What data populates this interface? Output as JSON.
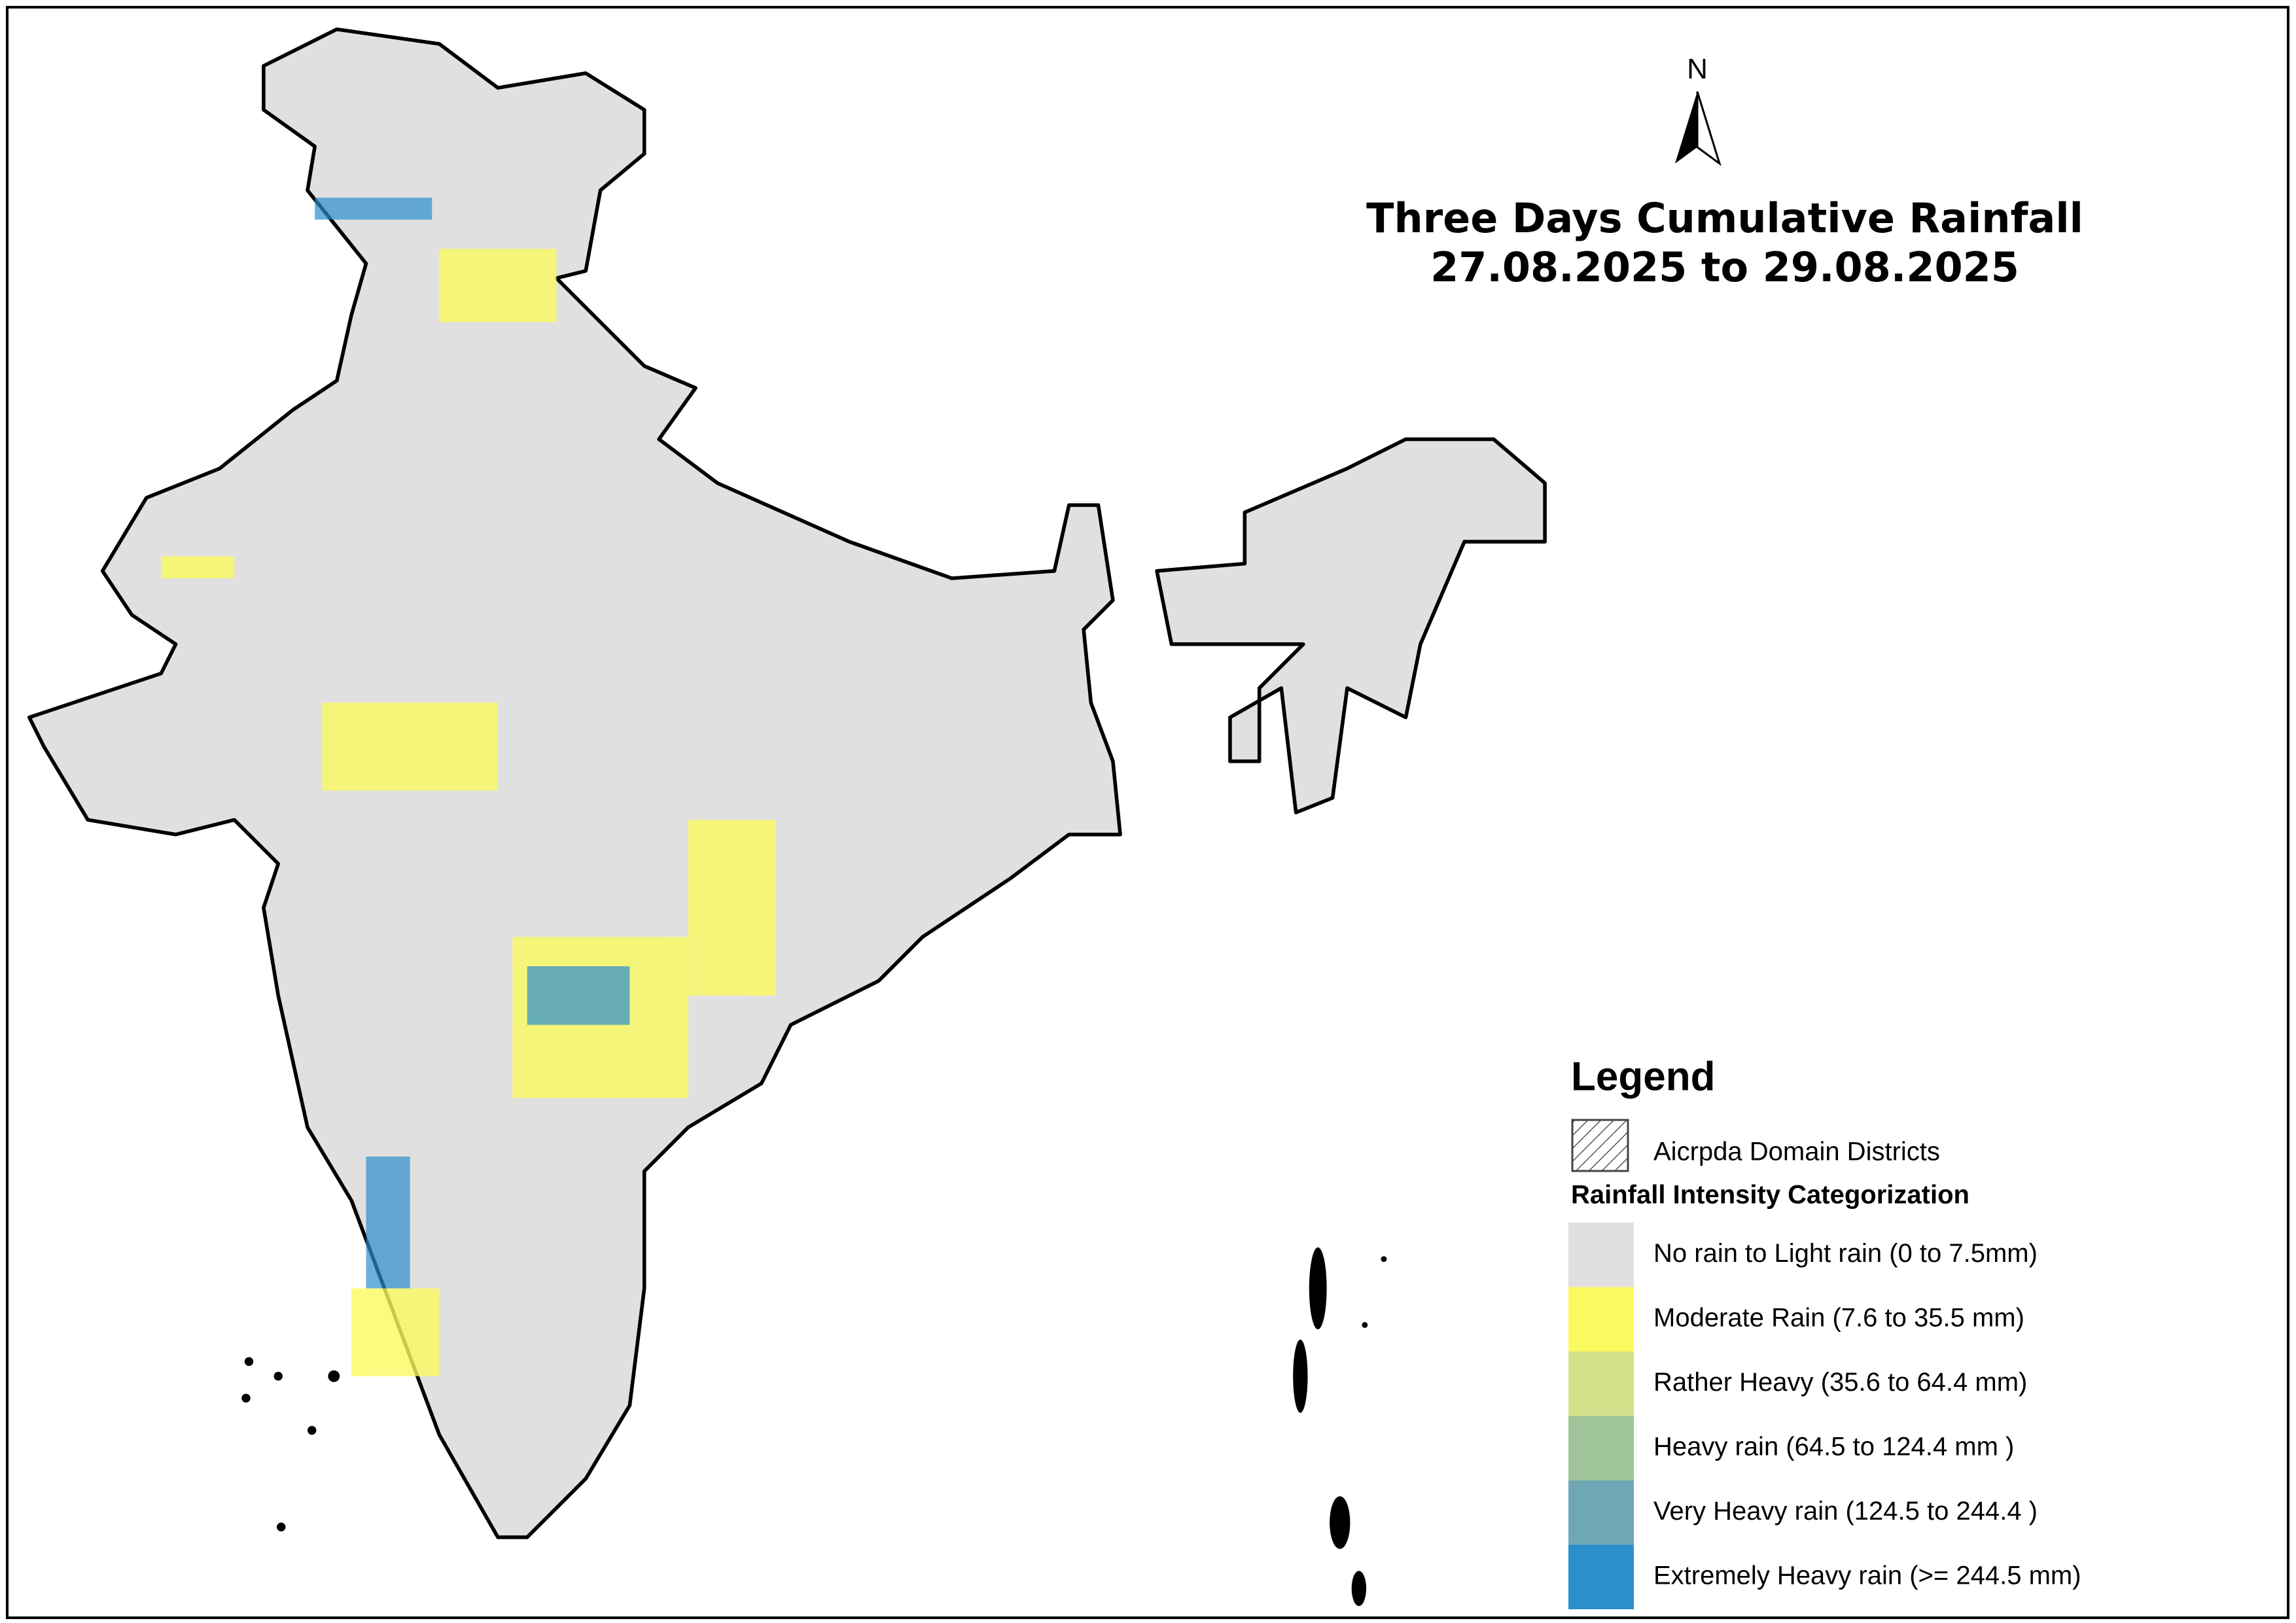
{
  "title": [
    "Three Days Cumulative Rainfall",
    "27.08.2025 to 29.08.2025"
  ],
  "north": "N",
  "legend": {
    "title": "Legend",
    "domain": "Aicrpda Domain Districts",
    "heading": "Rainfall Intensity Categorization",
    "items": [
      {
        "label": "No rain to Light rain (0 to 7.5mm)",
        "color": "#e0e0e0"
      },
      {
        "label": "Moderate Rain (7.6 to 35.5 mm)",
        "color": "#fafa60"
      },
      {
        "label": "Rather Heavy (35.6 to 64.4 mm)",
        "color": "#d4e08a"
      },
      {
        "label": "Heavy rain (64.5 to 124.4 mm )",
        "color": "#9fc49a"
      },
      {
        "label": "Very Heavy rain (124.5 to 244.4 )",
        "color": "#6fa8b4"
      },
      {
        "label": "Extremely Heavy rain  (>= 244.5 mm)",
        "color": "#2b8fcc"
      }
    ]
  }
}
